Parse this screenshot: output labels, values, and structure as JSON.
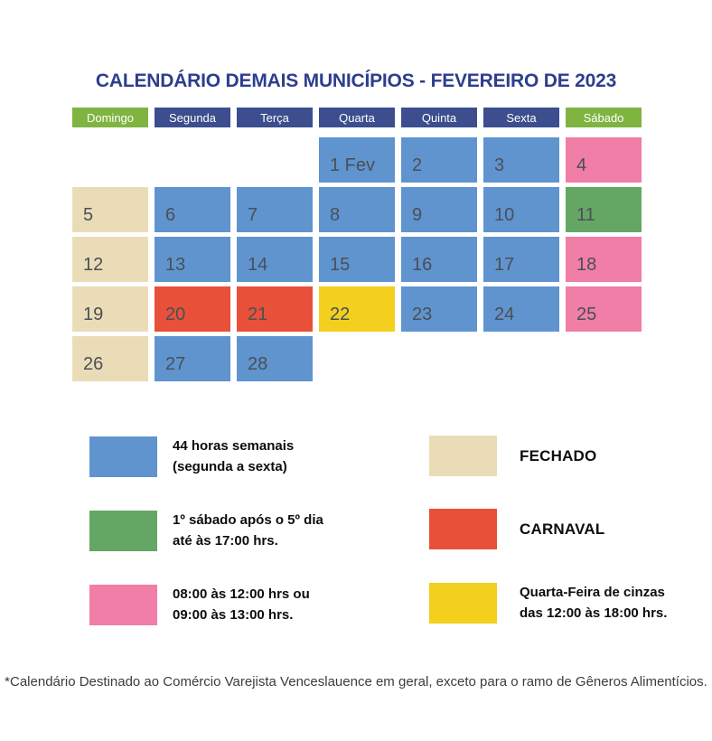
{
  "title": "CALENDÁRIO DEMAIS MUNICÍPIOS - FEVEREIRO DE 2023",
  "colors": {
    "title_navy": "#2c3e8d",
    "header_navy": "#3c4e8e",
    "header_green": "#80b441",
    "blue": "#5f94cf",
    "beige": "#ebdcb8",
    "pink": "#f07ea6",
    "green": "#64a764",
    "red": "#e9503a",
    "yellow": "#f2d01d",
    "day_text": "#4b4f55"
  },
  "weekdays": [
    {
      "label": "Domingo",
      "style": "green"
    },
    {
      "label": "Segunda",
      "style": "navy"
    },
    {
      "label": "Terça",
      "style": "navy"
    },
    {
      "label": "Quarta",
      "style": "navy"
    },
    {
      "label": "Quinta",
      "style": "navy"
    },
    {
      "label": "Sexta",
      "style": "navy"
    },
    {
      "label": "Sábado",
      "style": "green"
    }
  ],
  "calendar_cells": [
    {
      "label": "",
      "type": "empty"
    },
    {
      "label": "",
      "type": "empty"
    },
    {
      "label": "",
      "type": "empty"
    },
    {
      "label": "1 Fev",
      "type": "blue"
    },
    {
      "label": "2",
      "type": "blue"
    },
    {
      "label": "3",
      "type": "blue"
    },
    {
      "label": "4",
      "type": "pink"
    },
    {
      "label": "5",
      "type": "beige"
    },
    {
      "label": "6",
      "type": "blue"
    },
    {
      "label": "7",
      "type": "blue"
    },
    {
      "label": "8",
      "type": "blue"
    },
    {
      "label": "9",
      "type": "blue"
    },
    {
      "label": "10",
      "type": "blue"
    },
    {
      "label": "11",
      "type": "green"
    },
    {
      "label": "12",
      "type": "beige"
    },
    {
      "label": "13",
      "type": "blue"
    },
    {
      "label": "14",
      "type": "blue"
    },
    {
      "label": "15",
      "type": "blue"
    },
    {
      "label": "16",
      "type": "blue"
    },
    {
      "label": "17",
      "type": "blue"
    },
    {
      "label": "18",
      "type": "pink"
    },
    {
      "label": "19",
      "type": "beige"
    },
    {
      "label": "20",
      "type": "red"
    },
    {
      "label": "21",
      "type": "red"
    },
    {
      "label": "22",
      "type": "yellow"
    },
    {
      "label": "23",
      "type": "blue"
    },
    {
      "label": "24",
      "type": "blue"
    },
    {
      "label": "25",
      "type": "pink"
    },
    {
      "label": "26",
      "type": "beige"
    },
    {
      "label": "27",
      "type": "blue"
    },
    {
      "label": "28",
      "type": "blue"
    },
    {
      "label": "",
      "type": "empty"
    },
    {
      "label": "",
      "type": "empty"
    },
    {
      "label": "",
      "type": "empty"
    },
    {
      "label": "",
      "type": "empty"
    }
  ],
  "legend": {
    "left": [
      {
        "swatch": "blue",
        "caps": false,
        "lines": [
          "44 horas semanais",
          "(segunda a sexta)"
        ]
      },
      {
        "swatch": "green",
        "caps": false,
        "lines": [
          "1º sábado após o 5º dia",
          "até às 17:00 hrs."
        ]
      },
      {
        "swatch": "pink",
        "caps": false,
        "lines": [
          "08:00 às 12:00 hrs ou",
          "09:00 às 13:00 hrs."
        ]
      }
    ],
    "right": [
      {
        "swatch": "beige",
        "caps": true,
        "lines": [
          "FECHADO"
        ]
      },
      {
        "swatch": "red",
        "caps": true,
        "lines": [
          "CARNAVAL"
        ]
      },
      {
        "swatch": "yellow",
        "caps": false,
        "lines": [
          "Quarta-Feira de cinzas",
          "das 12:00 às 18:00 hrs."
        ]
      }
    ]
  },
  "footnote": "*Calendário Destinado ao Comércio Varejista Venceslauence em geral, exceto para o ramo de Gêneros Alimentícios."
}
